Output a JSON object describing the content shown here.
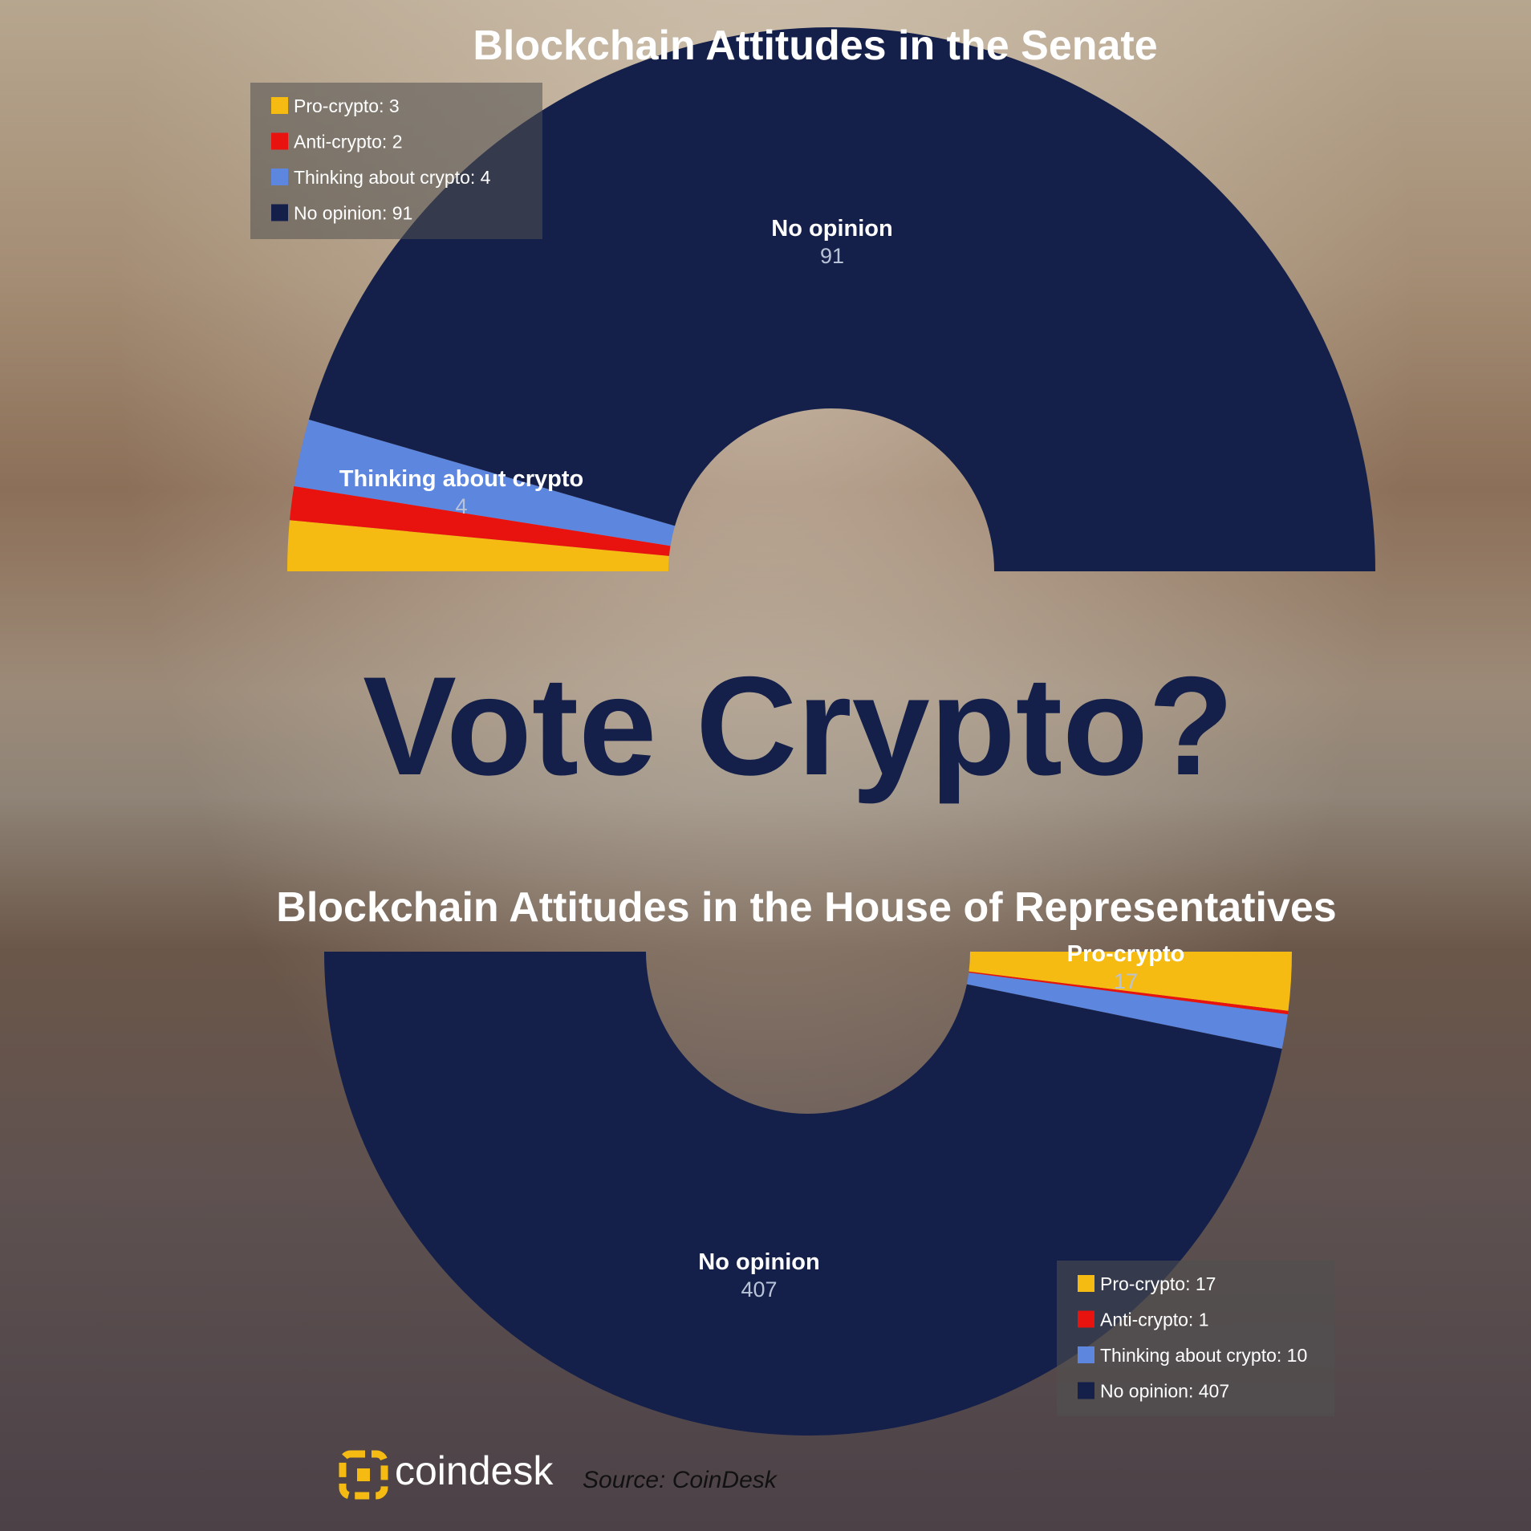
{
  "headline": "Vote Crypto?",
  "brand": "coindesk",
  "source": "Source: CoinDesk",
  "colors": {
    "Pro-crypto": "#f5bb12",
    "Anti-crypto": "#e8130f",
    "Thinking about crypto": "#5d86de",
    "No opinion": "#14204a"
  },
  "chart_data": [
    {
      "type": "pie",
      "title": "Blockchain Attitudes in the Senate",
      "categories": [
        "Pro-crypto",
        "Anti-crypto",
        "Thinking about crypto",
        "No opinion"
      ],
      "values": [
        3,
        2,
        4,
        91
      ],
      "legend": [
        "Pro-crypto: 3",
        "Anti-crypto: 2",
        "Thinking about crypto: 4",
        "No opinion: 91"
      ],
      "legend_position": "top-left",
      "slice_labels": [
        {
          "name": "Thinking about crypto",
          "value": "4"
        },
        {
          "name": "No opinion",
          "value": "91"
        }
      ]
    },
    {
      "type": "pie",
      "title": "Blockchain Attitudes in the House of Representatives",
      "categories": [
        "Pro-crypto",
        "Anti-crypto",
        "Thinking about crypto",
        "No opinion"
      ],
      "values": [
        17,
        1,
        10,
        407
      ],
      "legend": [
        "Pro-crypto: 17",
        "Anti-crypto: 1",
        "Thinking about crypto: 10",
        "No opinion: 407"
      ],
      "legend_position": "bottom-right",
      "slice_labels": [
        {
          "name": "Pro-crypto",
          "value": "17"
        },
        {
          "name": "No opinion",
          "value": "407"
        }
      ]
    }
  ]
}
